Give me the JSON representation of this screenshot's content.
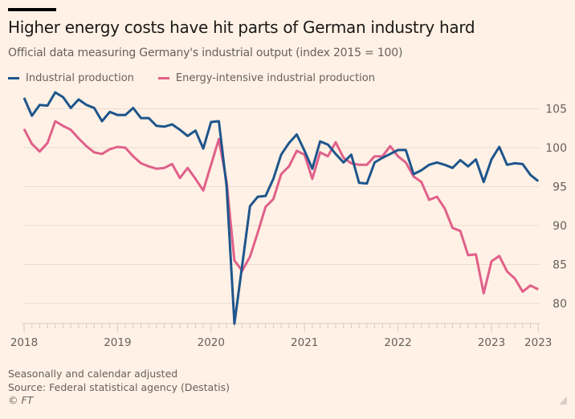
{
  "header": {
    "title": "Higher energy costs have hit parts of German industry hard",
    "subtitle": "Official data measuring Germany's industrial output (index 2015 = 100)"
  },
  "legend": [
    {
      "label": "Industrial production",
      "color": "#1e558c"
    },
    {
      "label": "Energy-intensive industrial production",
      "color": "#e0608a"
    }
  ],
  "footer": {
    "note": "Seasonally and calendar adjusted",
    "source": "Source: Federal statistical agency (Destatis)",
    "copyright": "© FT"
  },
  "chart_data": {
    "type": "line",
    "title": "Higher energy costs have hit parts of German industry hard",
    "subtitle": "Official data measuring Germany's industrial output (index 2015 = 100)",
    "xlabel": "",
    "ylabel": "",
    "x_start": "2018-01",
    "x_frequency": "monthly",
    "x_tick_labels": [
      "2018",
      "2019",
      "2020",
      "2021",
      "2022",
      "2023",
      "2023"
    ],
    "x_tick_positions": [
      0,
      12,
      24,
      36,
      48,
      60,
      66
    ],
    "y_ticks": [
      80,
      85,
      90,
      95,
      100,
      105
    ],
    "ylim": [
      77,
      108
    ],
    "y_axis_side": "right",
    "grid": true,
    "legend_position": "top-left",
    "series": [
      {
        "name": "Industrial production",
        "color": "#1e558c",
        "values": [
          106.4,
          104.1,
          105.5,
          105.4,
          107.1,
          106.5,
          105.1,
          106.2,
          105.5,
          105.1,
          103.4,
          104.6,
          104.2,
          104.2,
          105.1,
          103.8,
          103.8,
          102.8,
          102.7,
          103.0,
          102.3,
          101.5,
          102.2,
          99.9,
          103.3,
          103.4,
          95.0,
          77.4,
          84.9,
          92.5,
          93.7,
          93.8,
          96.0,
          99.1,
          100.6,
          101.7,
          99.6,
          97.3,
          100.8,
          100.4,
          99.2,
          98.1,
          99.1,
          95.5,
          95.4,
          98.1,
          98.7,
          99.2,
          99.7,
          99.7,
          96.6,
          97.1,
          97.8,
          98.1,
          97.8,
          97.4,
          98.4,
          97.6,
          98.5,
          95.6,
          98.5,
          100.1,
          97.8,
          98.0,
          97.9,
          96.5,
          95.7
        ]
      },
      {
        "name": "Energy-intensive industrial production",
        "color": "#e0608a",
        "values": [
          102.4,
          100.5,
          99.5,
          100.6,
          103.4,
          102.8,
          102.3,
          101.2,
          100.2,
          99.4,
          99.2,
          99.8,
          100.1,
          100.0,
          98.9,
          98.0,
          97.6,
          97.3,
          97.4,
          97.9,
          96.1,
          97.4,
          96.0,
          94.5,
          97.8,
          101.1,
          95.6,
          85.5,
          84.2,
          86.0,
          89.1,
          92.4,
          93.4,
          96.6,
          97.6,
          99.6,
          99.1,
          96.0,
          99.4,
          98.9,
          100.7,
          98.7,
          98.0,
          97.8,
          97.8,
          98.9,
          98.9,
          100.2,
          98.9,
          98.1,
          96.3,
          95.6,
          93.3,
          93.7,
          92.2,
          89.7,
          89.3,
          86.2,
          86.3,
          81.3,
          85.4,
          86.1,
          84.1,
          83.2,
          81.5,
          82.3,
          81.8
        ]
      }
    ]
  }
}
